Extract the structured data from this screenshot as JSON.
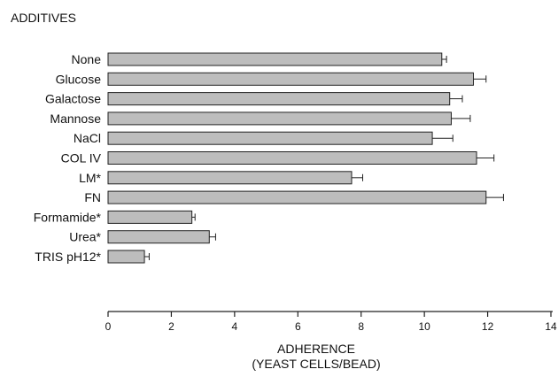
{
  "chart_data": {
    "type": "bar",
    "orientation": "horizontal",
    "corner_label": "ADDITIVES",
    "categories": [
      "None",
      "Glucose",
      "Galactose",
      "Mannose",
      "NaCl",
      "COL IV",
      "LM*",
      "FN",
      "Formamide*",
      "Urea*",
      "TRIS pH12*"
    ],
    "values": [
      10.55,
      11.55,
      10.8,
      10.85,
      10.25,
      11.65,
      7.7,
      11.95,
      2.65,
      3.2,
      1.15
    ],
    "errors": [
      0.15,
      0.4,
      0.4,
      0.6,
      0.65,
      0.55,
      0.35,
      0.55,
      0.1,
      0.2,
      0.15
    ],
    "xlabel": "ADHERENCE",
    "xlabel_sub": "(YEAST CELLS/BEAD)",
    "xlim": [
      0,
      14
    ],
    "xticks": [
      "0",
      "2",
      "4",
      "6",
      "8",
      "10",
      "12",
      "14"
    ],
    "grid": false,
    "bar_color": "#bdbdbd",
    "edge_color": "#222222"
  }
}
